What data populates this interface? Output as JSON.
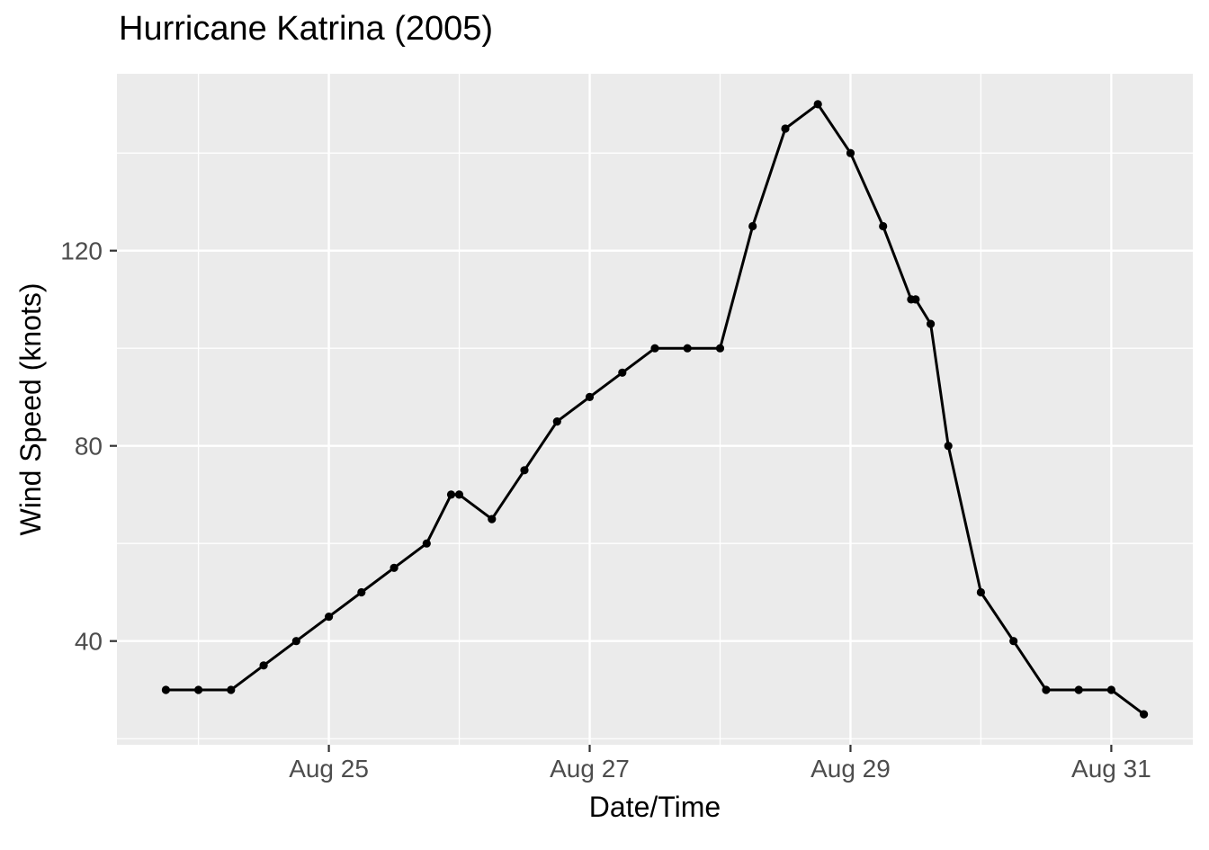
{
  "chart_data": {
    "type": "line",
    "title": "Hurricane Katrina (2005)",
    "xlabel": "Date/Time",
    "ylabel": "Wind Speed (knots)",
    "legend": "none",
    "grid": "white major and minor gridlines on grey panel",
    "x_unit_days_since": "Aug 23 2005 00:00 UTC",
    "xlim": [
      0.375,
      8.625
    ],
    "ylim": [
      18.75,
      156.25
    ],
    "x_ticks": [
      {
        "t": 2,
        "label": "Aug 25"
      },
      {
        "t": 4,
        "label": "Aug 27"
      },
      {
        "t": 6,
        "label": "Aug 29"
      },
      {
        "t": 8,
        "label": "Aug 31"
      }
    ],
    "x_minor": [
      1,
      3,
      5,
      7
    ],
    "y_ticks": [
      {
        "v": 40,
        "label": "40"
      },
      {
        "v": 80,
        "label": "80"
      },
      {
        "v": 120,
        "label": "120"
      }
    ],
    "y_minor": [
      20,
      60,
      100,
      140
    ],
    "series": [
      {
        "name": "wind-speed",
        "marker": "filled-circle",
        "points": [
          {
            "t": 0.75,
            "time": "Aug 23 18:00",
            "v": 30
          },
          {
            "t": 1.0,
            "time": "Aug 24 00:00",
            "v": 30
          },
          {
            "t": 1.25,
            "time": "Aug 24 06:00",
            "v": 30
          },
          {
            "t": 1.5,
            "time": "Aug 24 12:00",
            "v": 35
          },
          {
            "t": 1.75,
            "time": "Aug 24 18:00",
            "v": 40
          },
          {
            "t": 2.0,
            "time": "Aug 25 00:00",
            "v": 45
          },
          {
            "t": 2.25,
            "time": "Aug 25 06:00",
            "v": 50
          },
          {
            "t": 2.5,
            "time": "Aug 25 12:00",
            "v": 55
          },
          {
            "t": 2.75,
            "time": "Aug 25 18:00",
            "v": 60
          },
          {
            "t": 2.9375,
            "time": "Aug 25 22:30",
            "v": 70
          },
          {
            "t": 3.0,
            "time": "Aug 26 00:00",
            "v": 70
          },
          {
            "t": 3.25,
            "time": "Aug 26 06:00",
            "v": 65
          },
          {
            "t": 3.5,
            "time": "Aug 26 12:00",
            "v": 75
          },
          {
            "t": 3.75,
            "time": "Aug 26 18:00",
            "v": 85
          },
          {
            "t": 4.0,
            "time": "Aug 27 00:00",
            "v": 90
          },
          {
            "t": 4.25,
            "time": "Aug 27 06:00",
            "v": 95
          },
          {
            "t": 4.5,
            "time": "Aug 27 12:00",
            "v": 100
          },
          {
            "t": 4.75,
            "time": "Aug 27 18:00",
            "v": 100
          },
          {
            "t": 5.0,
            "time": "Aug 28 00:00",
            "v": 100
          },
          {
            "t": 5.25,
            "time": "Aug 28 06:00",
            "v": 125
          },
          {
            "t": 5.5,
            "time": "Aug 28 12:00",
            "v": 145
          },
          {
            "t": 5.75,
            "time": "Aug 28 18:00",
            "v": 150
          },
          {
            "t": 6.0,
            "time": "Aug 29 00:00",
            "v": 140
          },
          {
            "t": 6.25,
            "time": "Aug 29 06:00",
            "v": 125
          },
          {
            "t": 6.4653,
            "time": "Aug 29 11:10",
            "v": 110
          },
          {
            "t": 6.5,
            "time": "Aug 29 12:00",
            "v": 110
          },
          {
            "t": 6.6146,
            "time": "Aug 29 14:45",
            "v": 105
          },
          {
            "t": 6.75,
            "time": "Aug 29 18:00",
            "v": 80
          },
          {
            "t": 7.0,
            "time": "Aug 30 00:00",
            "v": 50
          },
          {
            "t": 7.25,
            "time": "Aug 30 06:00",
            "v": 40
          },
          {
            "t": 7.5,
            "time": "Aug 30 12:00",
            "v": 30
          },
          {
            "t": 7.75,
            "time": "Aug 30 18:00",
            "v": 30
          },
          {
            "t": 8.0,
            "time": "Aug 31 00:00",
            "v": 30
          },
          {
            "t": 8.25,
            "time": "Aug 31 06:00",
            "v": 25
          }
        ]
      }
    ],
    "colors": {
      "panel_background": "#EBEBEB",
      "gridline": "#FFFFFF",
      "line": "#000000",
      "point": "#000000",
      "tick_mark": "#333333",
      "tick_text": "#4D4D4D",
      "title_text": "#000000",
      "outer_background": "#FFFFFF"
    }
  }
}
